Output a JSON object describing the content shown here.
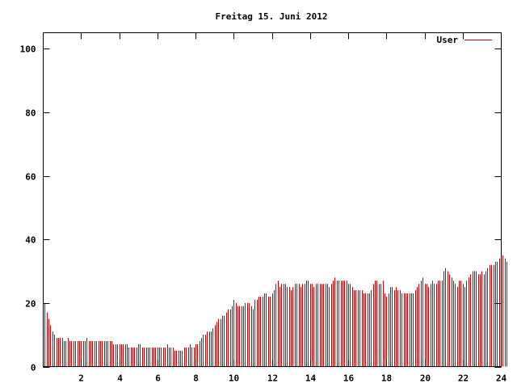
{
  "chart_data": {
    "type": "bar",
    "title": "Freitag 15. Juni 2012",
    "xlabel": "",
    "ylabel": "",
    "xlim": [
      0,
      24
    ],
    "ylim": [
      0,
      105
    ],
    "x_ticks": [
      2,
      4,
      6,
      8,
      10,
      12,
      14,
      16,
      18,
      20,
      22,
      24
    ],
    "y_ticks": [
      0,
      20,
      40,
      60,
      80,
      100
    ],
    "grid": false,
    "legend_position": "top-right",
    "bar_color": "#cc0000",
    "series": [
      {
        "name": "User",
        "interval_hours": 0.1,
        "values": [
          20,
          17,
          15,
          13,
          11,
          10,
          9,
          9,
          9,
          9,
          8,
          8,
          9,
          8,
          8,
          8,
          8,
          8,
          8,
          8,
          8,
          8,
          9,
          8,
          8,
          8,
          8,
          8,
          8,
          8,
          8,
          8,
          8,
          8,
          8,
          8,
          7,
          7,
          7,
          7,
          7,
          7,
          7,
          7,
          6,
          6,
          6,
          6,
          6,
          7,
          7,
          6,
          6,
          6,
          6,
          6,
          6,
          6,
          6,
          6,
          6,
          6,
          6,
          6,
          7,
          6,
          6,
          6,
          5,
          5,
          5,
          5,
          5,
          6,
          6,
          6,
          7,
          6,
          6,
          7,
          7,
          8,
          9,
          10,
          10,
          11,
          11,
          11,
          12,
          13,
          14,
          15,
          15,
          16,
          16,
          17,
          18,
          18,
          19,
          21,
          20,
          19,
          19,
          19,
          19,
          20,
          20,
          20,
          19,
          18,
          21,
          21,
          22,
          22,
          22,
          23,
          23,
          22,
          22,
          23,
          24,
          26,
          27,
          25,
          26,
          26,
          26,
          25,
          25,
          24,
          25,
          26,
          26,
          26,
          25,
          26,
          26,
          27,
          27,
          26,
          26,
          25,
          26,
          26,
          26,
          26,
          26,
          26,
          26,
          25,
          26,
          27,
          28,
          27,
          27,
          27,
          27,
          27,
          27,
          26,
          26,
          25,
          24,
          24,
          24,
          24,
          24,
          23,
          23,
          23,
          23,
          24,
          26,
          27,
          27,
          26,
          26,
          27,
          23,
          22,
          23,
          25,
          25,
          24,
          25,
          24,
          24,
          23,
          23,
          23,
          23,
          23,
          23,
          23,
          24,
          25,
          26,
          27,
          28,
          26,
          26,
          25,
          26,
          27,
          26,
          26,
          27,
          27,
          27,
          30,
          31,
          30,
          29,
          28,
          27,
          26,
          25,
          27,
          27,
          26,
          25,
          27,
          28,
          29,
          30,
          30,
          30,
          29,
          29,
          30,
          29,
          30,
          31,
          32,
          32,
          32,
          33,
          33,
          34,
          35,
          35,
          34,
          33
        ]
      }
    ]
  }
}
